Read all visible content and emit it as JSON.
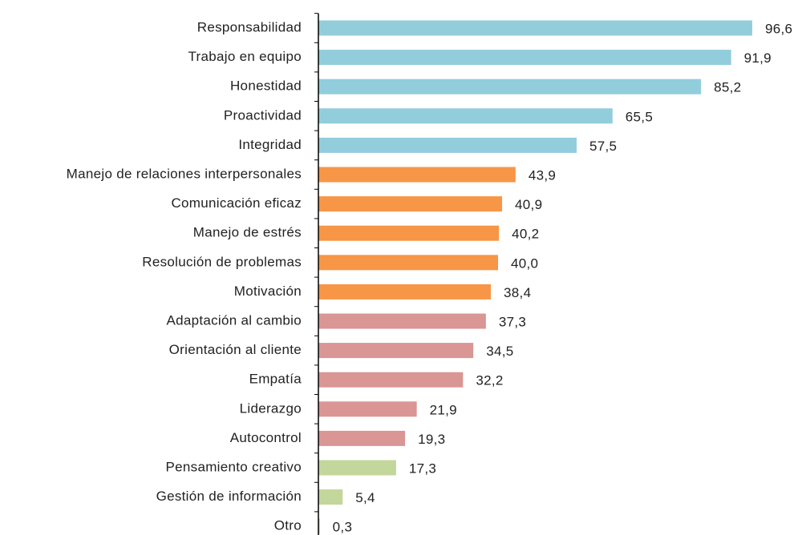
{
  "chart_data": {
    "type": "bar",
    "orientation": "horizontal",
    "categories": [
      "Responsabilidad",
      "Trabajo en equipo",
      "Honestidad",
      "Proactividad",
      "Integridad",
      "Manejo de relaciones interpersonales",
      "Comunicación eficaz",
      "Manejo de estrés",
      "Resolución de problemas",
      "Motivación",
      "Adaptación al cambio",
      "Orientación al cliente",
      "Empatía",
      "Liderazgo",
      "Autocontrol",
      "Pensamiento creativo",
      "Gestión de información",
      "Otro"
    ],
    "values": [
      96.6,
      91.9,
      85.2,
      65.5,
      57.5,
      43.9,
      40.9,
      40.2,
      40.0,
      38.4,
      37.3,
      34.5,
      32.2,
      21.9,
      19.3,
      17.3,
      5.4,
      0.3
    ],
    "value_labels": [
      "96,6",
      "91,9",
      "85,2",
      "65,5",
      "57,5",
      "43,9",
      "40,9",
      "40,2",
      "40,0",
      "38,4",
      "37,3",
      "34,5",
      "32,2",
      "21,9",
      "19,3",
      "17,3",
      "5,4",
      "0,3"
    ],
    "colors": [
      "#92cddc",
      "#92cddc",
      "#92cddc",
      "#92cddc",
      "#92cddc",
      "#f79646",
      "#f79646",
      "#f79646",
      "#f79646",
      "#f79646",
      "#d99694",
      "#d99694",
      "#d99694",
      "#d99694",
      "#d99694",
      "#c3d69b",
      "#c3d69b",
      "#c3d69b"
    ],
    "xlim": [
      0,
      100
    ]
  }
}
